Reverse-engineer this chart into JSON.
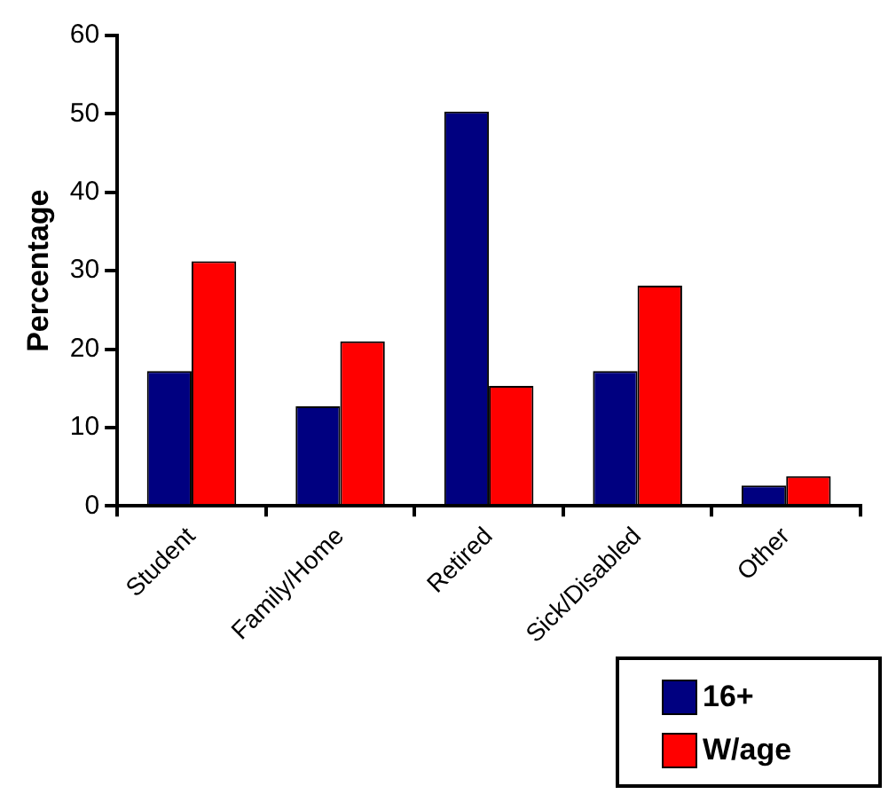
{
  "chart_data": {
    "type": "bar",
    "ylabel": "Percentage",
    "categories": [
      "Student",
      "Family/Home",
      "Retired",
      "Sick/Disabled",
      "Other"
    ],
    "series": [
      {
        "name": "16+",
        "color": "#000080",
        "values": [
          17.2,
          12.7,
          50.3,
          17.2,
          2.6
        ]
      },
      {
        "name": "W/age",
        "color": "#ff0000",
        "values": [
          31.2,
          21.0,
          15.3,
          28.1,
          3.8
        ]
      }
    ],
    "ylim": [
      0,
      60
    ],
    "yticks": [
      0,
      10,
      20,
      30,
      40,
      50,
      60
    ],
    "grid": false,
    "legend": "bottom right"
  }
}
